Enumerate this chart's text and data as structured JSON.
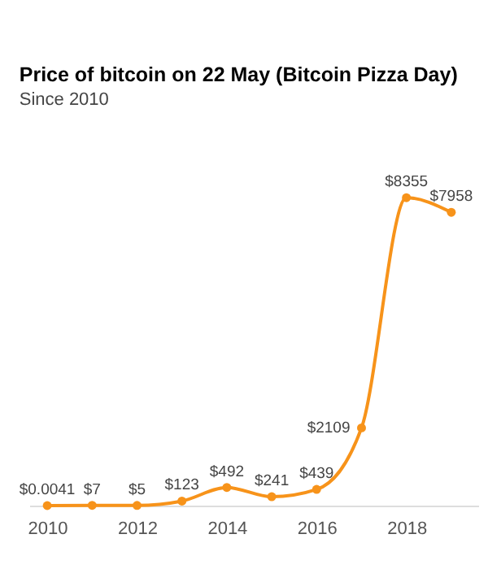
{
  "chart_data": {
    "type": "line",
    "title": "Price of bitcoin on 22 May (Bitcoin Pizza Day)",
    "subtitle": "Since 2010",
    "x": [
      2010,
      2011,
      2012,
      2013,
      2014,
      2015,
      2016,
      2017,
      2018,
      2019
    ],
    "series": [
      {
        "color": "#f7931a",
        "values": [
          0.0041,
          7,
          5,
          123,
          492,
          241,
          439,
          2109,
          8355,
          7958
        ],
        "value_labels": [
          "$0.0041",
          "$7",
          "$5",
          "$123",
          "$492",
          "$241",
          "$439",
          "$2109",
          "$8355",
          "$7958"
        ]
      }
    ],
    "xticks": [
      2010,
      2012,
      2014,
      2016,
      2018
    ],
    "xlim": [
      2009.6,
      2019.6
    ],
    "marker": "circle"
  }
}
